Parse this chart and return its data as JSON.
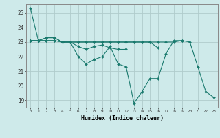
{
  "title": "",
  "xlabel": "Humidex (Indice chaleur)",
  "bg_color": "#ceeaea",
  "grid_color": "#b0cccc",
  "line_color": "#1a7a6e",
  "marker_color": "#1a7a6e",
  "ylim": [
    18.5,
    25.6
  ],
  "xlim": [
    -0.5,
    23.5
  ],
  "yticks": [
    19,
    20,
    21,
    22,
    23,
    24,
    25
  ],
  "xticks": [
    0,
    1,
    2,
    3,
    4,
    5,
    6,
    7,
    8,
    9,
    10,
    11,
    12,
    13,
    14,
    15,
    16,
    17,
    18,
    19,
    20,
    21,
    22,
    23
  ],
  "series": [
    [
      25.3,
      23.1,
      23.3,
      23.3,
      23.0,
      23.0,
      22.0,
      21.5,
      21.8,
      22.0,
      22.7,
      21.5,
      21.3,
      18.8,
      19.6,
      20.5,
      20.5,
      22.2,
      23.1,
      23.1,
      23.0,
      21.3,
      19.6,
      19.2
    ],
    [
      23.1,
      23.1,
      23.1,
      23.1,
      23.0,
      23.0,
      23.0,
      23.0,
      23.0,
      23.0,
      23.0,
      23.0,
      23.0,
      23.0,
      23.0,
      23.0,
      23.0,
      23.0,
      23.0,
      23.1,
      null,
      null,
      null,
      null
    ],
    [
      23.1,
      23.1,
      23.1,
      23.1,
      23.0,
      23.0,
      23.0,
      23.0,
      23.0,
      23.0,
      23.0,
      23.0,
      23.0,
      23.0,
      23.0,
      23.0,
      22.6,
      null,
      null,
      null,
      null,
      null,
      null,
      null
    ],
    [
      23.1,
      23.1,
      23.3,
      23.3,
      23.0,
      23.0,
      22.7,
      22.5,
      22.7,
      22.8,
      22.6,
      22.5,
      22.5,
      null,
      null,
      null,
      null,
      null,
      null,
      null,
      null,
      null,
      null,
      null
    ]
  ]
}
